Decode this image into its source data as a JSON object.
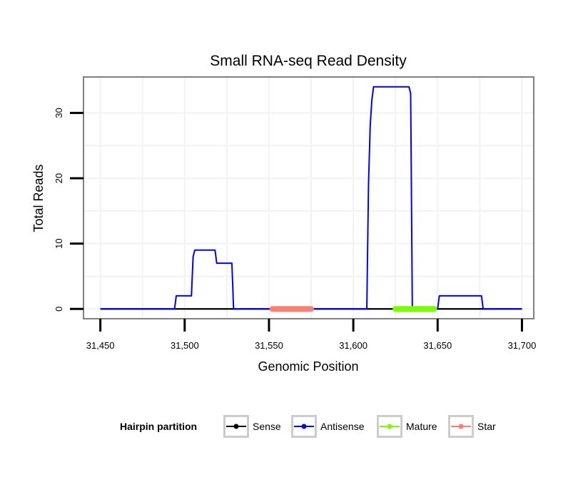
{
  "chart_data": {
    "type": "line",
    "title": "Small RNA-seq Read Density",
    "xlabel": "Genomic Position",
    "ylabel": "Total Reads",
    "xlim": [
      31440,
      31707
    ],
    "ylim": [
      -1.5,
      35.5
    ],
    "x_ticks": [
      31450,
      31500,
      31550,
      31600,
      31650,
      31700
    ],
    "x_tick_labels": [
      "31,450",
      "31,500",
      "31,550",
      "31,600",
      "31,650",
      "31,700"
    ],
    "y_ticks": [
      0,
      10,
      20,
      30
    ],
    "y_tick_labels": [
      "0",
      "10",
      "20",
      "30"
    ],
    "grid": true,
    "legend": {
      "title": "Hairpin partition",
      "position": "bottom"
    },
    "series": [
      {
        "name": "Sense",
        "color": "#000000",
        "x": [
          31450,
          31700
        ],
        "y": [
          0,
          0
        ]
      },
      {
        "name": "Antisense",
        "color": "#0000ff",
        "x": [
          31450,
          31494,
          31495,
          31504,
          31505,
          31506,
          31507,
          31518,
          31519,
          31528,
          31529,
          31608,
          31609,
          31610,
          31611,
          31612,
          31633,
          31634,
          31635,
          31650,
          31651,
          31676,
          31677,
          31700
        ],
        "y": [
          0,
          0,
          2,
          2,
          8,
          9,
          9,
          9,
          7,
          7,
          0,
          0,
          19,
          28,
          32,
          34,
          34,
          33,
          0,
          0,
          2,
          2,
          0,
          0
        ]
      },
      {
        "name": "Mature",
        "color": "#7cfc00",
        "x": [
          31625,
          31648
        ],
        "y": [
          0,
          0
        ]
      },
      {
        "name": "Star",
        "color": "#fa8072",
        "x": [
          31552,
          31575
        ],
        "y": [
          0,
          0
        ]
      }
    ]
  }
}
